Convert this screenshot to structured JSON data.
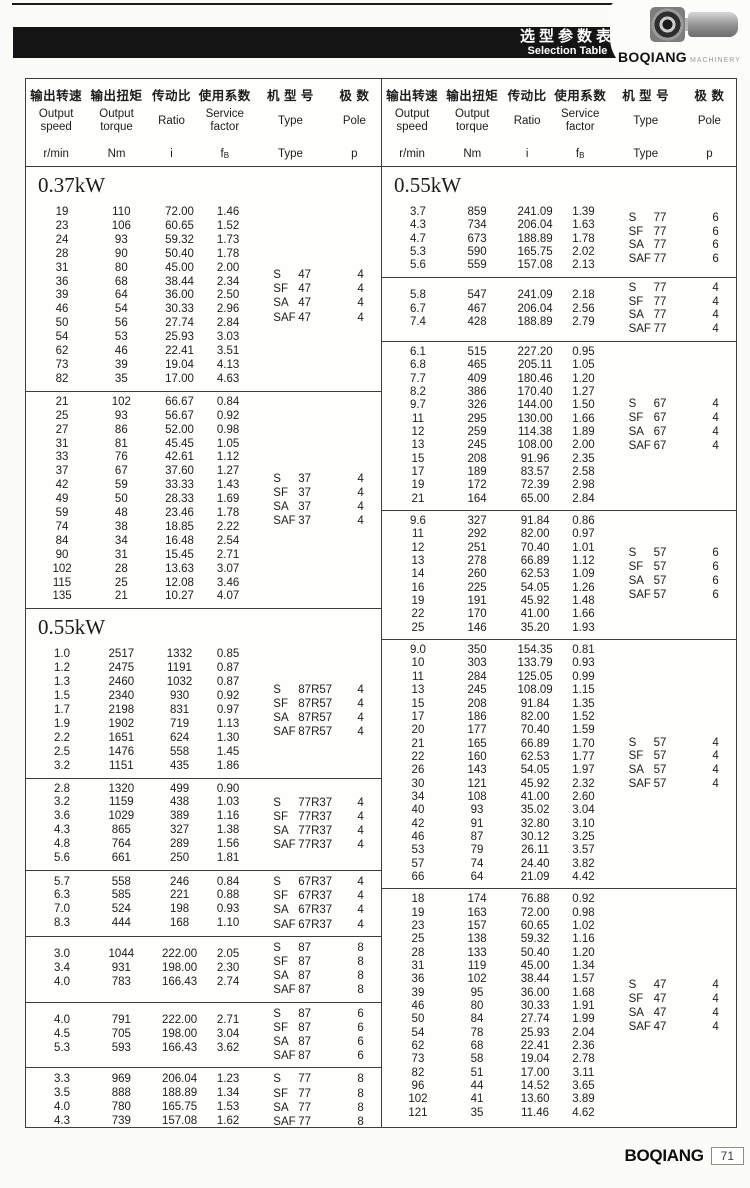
{
  "header_bar": {
    "title_cn": "选型参数表",
    "title_en": "Selection Table"
  },
  "logo": {
    "brand": "BOQIANG",
    "sub": "MACHINERY"
  },
  "footer": {
    "brand": "BOQIANG",
    "page_number": "71"
  },
  "table_header": {
    "cols": [
      {
        "cn": "输出转速",
        "en": "Output speed",
        "unit": "r/min"
      },
      {
        "cn": "输出扭矩",
        "en": "Output torque",
        "unit": "Nm"
      },
      {
        "cn": "传动比",
        "en": "Ratio",
        "unit": "i"
      },
      {
        "cn": "使用系数",
        "en": "Service factor",
        "unit": "fB"
      },
      {
        "cn": "机 型 号",
        "en": "Type",
        "unit": "Type"
      },
      {
        "cn": "极 数",
        "en": "Pole",
        "unit": "p"
      }
    ]
  },
  "type_prefixes": [
    "S",
    "SF",
    "SA",
    "SAF"
  ],
  "columns": [
    {
      "sections": [
        {
          "power": "0.37kW",
          "blocks": [
            {
              "model": "47",
              "pole": "4",
              "rows": [
                [
                  "19",
                  "110",
                  "72.00",
                  "1.46"
                ],
                [
                  "23",
                  "106",
                  "60.65",
                  "1.52"
                ],
                [
                  "24",
                  "93",
                  "59.32",
                  "1.73"
                ],
                [
                  "28",
                  "90",
                  "50.40",
                  "1.78"
                ],
                [
                  "31",
                  "80",
                  "45.00",
                  "2.00"
                ],
                [
                  "36",
                  "68",
                  "38.44",
                  "2.34"
                ],
                [
                  "39",
                  "64",
                  "36.00",
                  "2.50"
                ],
                [
                  "46",
                  "54",
                  "30.33",
                  "2.96"
                ],
                [
                  "50",
                  "56",
                  "27.74",
                  "2.84"
                ],
                [
                  "54",
                  "53",
                  "25.93",
                  "3.03"
                ],
                [
                  "62",
                  "46",
                  "22.41",
                  "3.51"
                ],
                [
                  "73",
                  "39",
                  "19.04",
                  "4.13"
                ],
                [
                  "82",
                  "35",
                  "17.00",
                  "4.63"
                ]
              ]
            },
            {
              "model": "37",
              "pole": "4",
              "rows": [
                [
                  "21",
                  "102",
                  "66.67",
                  "0.84"
                ],
                [
                  "25",
                  "93",
                  "56.67",
                  "0.92"
                ],
                [
                  "27",
                  "86",
                  "52.00",
                  "0.98"
                ],
                [
                  "31",
                  "81",
                  "45.45",
                  "1.05"
                ],
                [
                  "33",
                  "76",
                  "42.61",
                  "1.12"
                ],
                [
                  "37",
                  "67",
                  "37.60",
                  "1.27"
                ],
                [
                  "42",
                  "59",
                  "33.33",
                  "1.43"
                ],
                [
                  "49",
                  "50",
                  "28.33",
                  "1.69"
                ],
                [
                  "59",
                  "48",
                  "23.46",
                  "1.78"
                ],
                [
                  "74",
                  "38",
                  "18.85",
                  "2.22"
                ],
                [
                  "84",
                  "34",
                  "16.48",
                  "2.54"
                ],
                [
                  "90",
                  "31",
                  "15.45",
                  "2.71"
                ],
                [
                  "102",
                  "28",
                  "13.63",
                  "3.07"
                ],
                [
                  "115",
                  "25",
                  "12.08",
                  "3.46"
                ],
                [
                  "135",
                  "21",
                  "10.27",
                  "4.07"
                ]
              ]
            }
          ]
        },
        {
          "power": "0.55kW",
          "blocks": [
            {
              "model": "87R57",
              "pole": "4",
              "rows": [
                [
                  "1.0",
                  "2517",
                  "1332",
                  "0.85"
                ],
                [
                  "1.2",
                  "2475",
                  "1191",
                  "0.87"
                ],
                [
                  "1.3",
                  "2460",
                  "1032",
                  "0.87"
                ],
                [
                  "1.5",
                  "2340",
                  "930",
                  "0.92"
                ],
                [
                  "1.7",
                  "2198",
                  "831",
                  "0.97"
                ],
                [
                  "1.9",
                  "1902",
                  "719",
                  "1.13"
                ],
                [
                  "2.2",
                  "1651",
                  "624",
                  "1.30"
                ],
                [
                  "2.5",
                  "1476",
                  "558",
                  "1.45"
                ],
                [
                  "3.2",
                  "1151",
                  "435",
                  "1.86"
                ]
              ]
            },
            {
              "model": "77R37",
              "pole": "4",
              "rows": [
                [
                  "2.8",
                  "1320",
                  "499",
                  "0.90"
                ],
                [
                  "3.2",
                  "1159",
                  "438",
                  "1.03"
                ],
                [
                  "3.6",
                  "1029",
                  "389",
                  "1.16"
                ],
                [
                  "4.3",
                  "865",
                  "327",
                  "1.38"
                ],
                [
                  "4.8",
                  "764",
                  "289",
                  "1.56"
                ],
                [
                  "5.6",
                  "661",
                  "250",
                  "1.81"
                ]
              ]
            },
            {
              "model": "67R37",
              "pole": "4",
              "rows": [
                [
                  "5.7",
                  "558",
                  "246",
                  "0.84"
                ],
                [
                  "6.3",
                  "585",
                  "221",
                  "0.88"
                ],
                [
                  "7.0",
                  "524",
                  "198",
                  "0.93"
                ],
                [
                  "8.3",
                  "444",
                  "168",
                  "1.10"
                ]
              ]
            },
            {
              "model": "87",
              "pole": "8",
              "rows": [
                [
                  "3.0",
                  "1044",
                  "222.00",
                  "2.05"
                ],
                [
                  "3.4",
                  "931",
                  "198.00",
                  "2.30"
                ],
                [
                  "4.0",
                  "783",
                  "166.43",
                  "2.74"
                ]
              ]
            },
            {
              "model": "87",
              "pole": "6",
              "rows": [
                [
                  "4.0",
                  "791",
                  "222.00",
                  "2.71"
                ],
                [
                  "4.5",
                  "705",
                  "198.00",
                  "3.04"
                ],
                [
                  "5.3",
                  "593",
                  "166.43",
                  "3.62"
                ]
              ]
            },
            {
              "model": "77",
              "pole": "8",
              "rows": [
                [
                  "3.3",
                  "969",
                  "206.04",
                  "1.23"
                ],
                [
                  "3.5",
                  "888",
                  "188.89",
                  "1.34"
                ],
                [
                  "4.0",
                  "780",
                  "165.75",
                  "1.53"
                ],
                [
                  "4.3",
                  "739",
                  "157.08",
                  "1.62"
                ]
              ]
            }
          ]
        }
      ]
    },
    {
      "sections": [
        {
          "power": "0.55kW",
          "blocks": [
            {
              "model": "77",
              "pole": "6",
              "rows": [
                [
                  "3.7",
                  "859",
                  "241.09",
                  "1.39"
                ],
                [
                  "4.3",
                  "734",
                  "206.04",
                  "1.63"
                ],
                [
                  "4.7",
                  "673",
                  "188.89",
                  "1.78"
                ],
                [
                  "5.3",
                  "590",
                  "165.75",
                  "2.02"
                ],
                [
                  "5.6",
                  "559",
                  "157.08",
                  "2.13"
                ]
              ]
            },
            {
              "model": "77",
              "pole": "4",
              "rows": [
                [
                  "5.8",
                  "547",
                  "241.09",
                  "2.18"
                ],
                [
                  "6.7",
                  "467",
                  "206.04",
                  "2.56"
                ],
                [
                  "7.4",
                  "428",
                  "188.89",
                  "2.79"
                ]
              ]
            },
            {
              "model": "67",
              "pole": "4",
              "rows": [
                [
                  "6.1",
                  "515",
                  "227.20",
                  "0.95"
                ],
                [
                  "6.8",
                  "465",
                  "205.11",
                  "1.05"
                ],
                [
                  "7.7",
                  "409",
                  "180.46",
                  "1.20"
                ],
                [
                  "8.2",
                  "386",
                  "170.40",
                  "1.27"
                ],
                [
                  "9.7",
                  "326",
                  "144.00",
                  "1.50"
                ],
                [
                  "11",
                  "295",
                  "130.00",
                  "1.66"
                ],
                [
                  "12",
                  "259",
                  "114.38",
                  "1.89"
                ],
                [
                  "13",
                  "245",
                  "108.00",
                  "2.00"
                ],
                [
                  "15",
                  "208",
                  "91.96",
                  "2.35"
                ],
                [
                  "17",
                  "189",
                  "83.57",
                  "2.58"
                ],
                [
                  "19",
                  "172",
                  "72.39",
                  "2.98"
                ],
                [
                  "21",
                  "164",
                  "65.00",
                  "2.84"
                ]
              ]
            },
            {
              "model": "57",
              "pole": "6",
              "rows": [
                [
                  "9.6",
                  "327",
                  "91.84",
                  "0.86"
                ],
                [
                  "11",
                  "292",
                  "82.00",
                  "0.97"
                ],
                [
                  "12",
                  "251",
                  "70.40",
                  "1.01"
                ],
                [
                  "13",
                  "278",
                  "66.89",
                  "1.12"
                ],
                [
                  "14",
                  "260",
                  "62.53",
                  "1.09"
                ],
                [
                  "16",
                  "225",
                  "54.05",
                  "1.26"
                ],
                [
                  "19",
                  "191",
                  "45.92",
                  "1.48"
                ],
                [
                  "22",
                  "170",
                  "41.00",
                  "1.66"
                ],
                [
                  "25",
                  "146",
                  "35.20",
                  "1.93"
                ]
              ]
            },
            {
              "model": "57",
              "pole": "4",
              "rows": [
                [
                  "9.0",
                  "350",
                  "154.35",
                  "0.81"
                ],
                [
                  "10",
                  "303",
                  "133.79",
                  "0.93"
                ],
                [
                  "11",
                  "284",
                  "125.05",
                  "0.99"
                ],
                [
                  "13",
                  "245",
                  "108.09",
                  "1.15"
                ],
                [
                  "15",
                  "208",
                  "91.84",
                  "1.35"
                ],
                [
                  "17",
                  "186",
                  "82.00",
                  "1.52"
                ],
                [
                  "20",
                  "177",
                  "70.40",
                  "1.59"
                ],
                [
                  "21",
                  "165",
                  "66.89",
                  "1.70"
                ],
                [
                  "22",
                  "160",
                  "62.53",
                  "1.77"
                ],
                [
                  "26",
                  "143",
                  "54.05",
                  "1.97"
                ],
                [
                  "30",
                  "121",
                  "45.92",
                  "2.32"
                ],
                [
                  "34",
                  "108",
                  "41.00",
                  "2.60"
                ],
                [
                  "40",
                  "93",
                  "35.02",
                  "3.04"
                ],
                [
                  "42",
                  "91",
                  "32.80",
                  "3.10"
                ],
                [
                  "46",
                  "87",
                  "30.12",
                  "3.25"
                ],
                [
                  "53",
                  "79",
                  "26.11",
                  "3.57"
                ],
                [
                  "57",
                  "74",
                  "24.40",
                  "3.82"
                ],
                [
                  "66",
                  "64",
                  "21.09",
                  "4.42"
                ]
              ]
            },
            {
              "model": "47",
              "pole": "4",
              "rows": [
                [
                  "18",
                  "174",
                  "76.88",
                  "0.92"
                ],
                [
                  "19",
                  "163",
                  "72.00",
                  "0.98"
                ],
                [
                  "23",
                  "157",
                  "60.65",
                  "1.02"
                ],
                [
                  "25",
                  "138",
                  "59.32",
                  "1.16"
                ],
                [
                  "28",
                  "133",
                  "50.40",
                  "1.20"
                ],
                [
                  "31",
                  "119",
                  "45.00",
                  "1.34"
                ],
                [
                  "36",
                  "102",
                  "38.44",
                  "1.57"
                ],
                [
                  "39",
                  "95",
                  "36.00",
                  "1.68"
                ],
                [
                  "46",
                  "80",
                  "30.33",
                  "1.91"
                ],
                [
                  "50",
                  "84",
                  "27.74",
                  "1.99"
                ],
                [
                  "54",
                  "78",
                  "25.93",
                  "2.04"
                ],
                [
                  "62",
                  "68",
                  "22.41",
                  "2.36"
                ],
                [
                  "73",
                  "58",
                  "19.04",
                  "2.78"
                ],
                [
                  "82",
                  "51",
                  "17.00",
                  "3.11"
                ],
                [
                  "96",
                  "44",
                  "14.52",
                  "3.65"
                ],
                [
                  "102",
                  "41",
                  "13.60",
                  "3.89"
                ],
                [
                  "121",
                  "35",
                  "11.46",
                  "4.62"
                ]
              ]
            }
          ]
        }
      ]
    }
  ]
}
